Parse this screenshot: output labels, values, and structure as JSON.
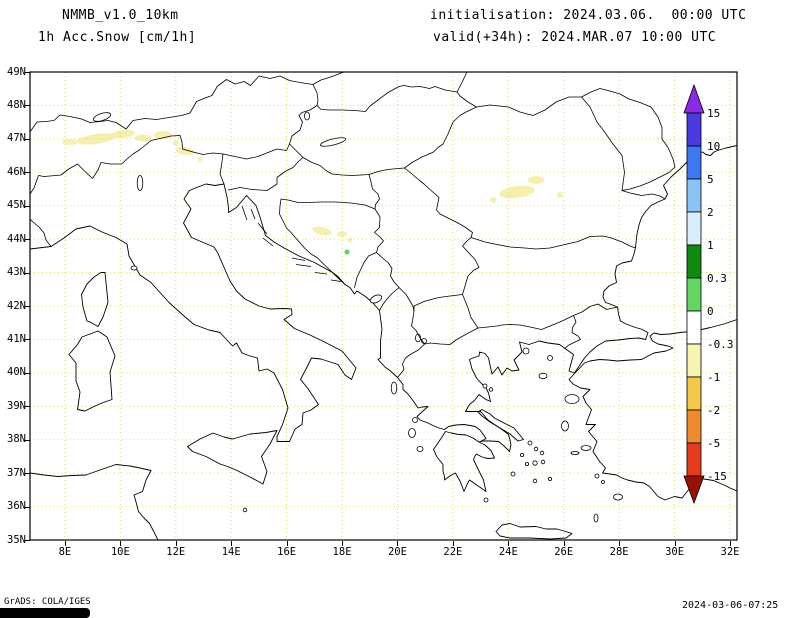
{
  "header": {
    "model_line": "NMMB_v1.0_10km",
    "field_line": "1h Acc.Snow [cm/1h]",
    "init_line": "initialisation: 2024.03.06.  00:00 UTC",
    "valid_line": "valid(+34h): 2024.MAR.07 10:00 UTC"
  },
  "footer": {
    "credit": "GrADS: COLA/IGES",
    "timestamp": "2024-03-06-07:25"
  },
  "map": {
    "lat_labels": [
      "49N",
      "48N",
      "47N",
      "46N",
      "45N",
      "44N",
      "43N",
      "42N",
      "41N",
      "40N",
      "39N",
      "38N",
      "37N",
      "36N",
      "35N"
    ],
    "lon_labels": [
      "8E",
      "10E",
      "12E",
      "14E",
      "16E",
      "18E",
      "20E",
      "22E",
      "24E",
      "26E",
      "28E",
      "30E",
      "32E"
    ],
    "grid_color": "#d8d884",
    "coast_color": "#000000"
  },
  "colorbar": {
    "boundary_labels": [
      "15",
      "10",
      "5",
      "2",
      "1",
      "0.3",
      "0",
      "-0.3",
      "-1",
      "-2",
      "-5",
      "-15"
    ],
    "arrow_top_color": "#8a2be2",
    "arrow_bottom_color": "#991100",
    "segment_colors": [
      "#4a3ae0",
      "#3c78f0",
      "#8cc3f5",
      "#daeefa",
      "#0f8a0f",
      "#62d862",
      "#ffffff",
      "#f7f3b0",
      "#f3c94b",
      "#f08a2e",
      "#e53c20"
    ]
  },
  "snow_overlay": {
    "light_color": "#f5f0ae",
    "green_color": "#5ed45e",
    "areas": [
      {
        "name": "Alps (E Switzerland / W Austria / N Italy)",
        "lon_range": "8.5E-13E",
        "lat_range": "46.3N-47.3N",
        "color": "pale-yellow"
      },
      {
        "name": "Central Bosnia",
        "lon_range": "17E-18.3E",
        "lat_range": "43.7N-44.4N",
        "color": "pale-yellow with one green spot"
      },
      {
        "name": "Southern Carpathians (Romania)",
        "lon_range": "23.3E-26E",
        "lat_range": "45.1N-45.9N",
        "color": "pale-yellow"
      }
    ]
  }
}
